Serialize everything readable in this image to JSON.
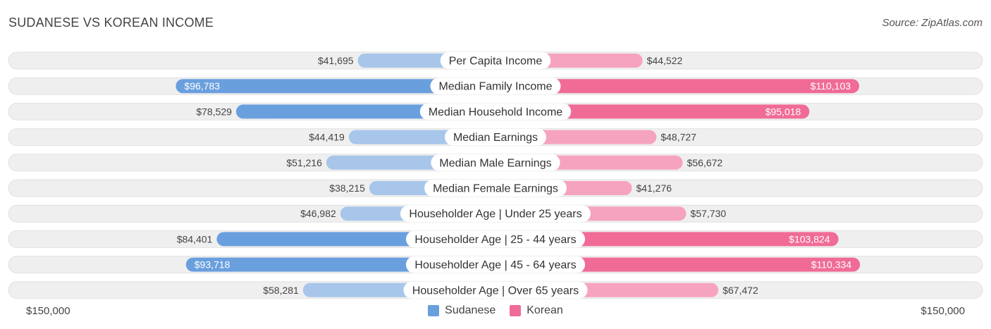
{
  "header": {
    "title": "SUDANESE VS KOREAN INCOME",
    "source": "Source: ZipAtlas.com"
  },
  "axis": {
    "left_label": "$150,000",
    "right_label": "$150,000"
  },
  "legend": {
    "left": "Sudanese",
    "right": "Korean"
  },
  "colors": {
    "left_strong": "#6a9fde",
    "left_light": "#a7c6ea",
    "right_strong": "#f06b96",
    "right_light": "#f6a3bf",
    "row_bg": "#efefef"
  },
  "chart_data": {
    "type": "bar",
    "orientation": "diverging-horizontal",
    "title": "SUDANESE VS KOREAN INCOME",
    "axis_max": 150000,
    "categories": [
      "Per Capita Income",
      "Median Family Income",
      "Median Household Income",
      "Median Earnings",
      "Median Male Earnings",
      "Median Female Earnings",
      "Householder Age | Under 25 years",
      "Householder Age | 25 - 44 years",
      "Householder Age | 45 - 64 years",
      "Householder Age | Over 65 years"
    ],
    "series": [
      {
        "name": "Sudanese",
        "values": [
          41695,
          96783,
          78529,
          44419,
          51216,
          38215,
          46982,
          84401,
          93718,
          58281
        ],
        "labels": [
          "$41,695",
          "$96,783",
          "$78,529",
          "$44,419",
          "$51,216",
          "$38,215",
          "$46,982",
          "$84,401",
          "$93,718",
          "$58,281"
        ]
      },
      {
        "name": "Korean",
        "values": [
          44522,
          110103,
          95018,
          48727,
          56672,
          41276,
          57730,
          103824,
          110334,
          67472
        ],
        "labels": [
          "$44,522",
          "$110,103",
          "$95,018",
          "$48,727",
          "$56,672",
          "$41,276",
          "$57,730",
          "$103,824",
          "$110,334",
          "$67,472"
        ]
      }
    ],
    "strong_rows": [
      1,
      2,
      7,
      8
    ],
    "value_label_inside": [
      [
        false,
        true,
        false,
        false,
        false,
        false,
        false,
        false,
        true,
        false
      ],
      [
        false,
        true,
        true,
        false,
        false,
        false,
        false,
        true,
        true,
        false
      ]
    ]
  }
}
